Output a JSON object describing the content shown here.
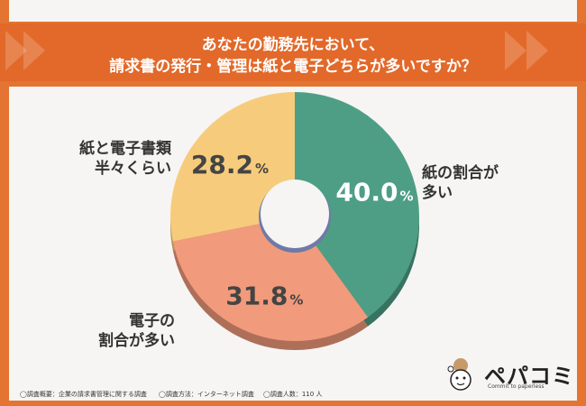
{
  "header": {
    "title_line1": "あなたの勤務先において、",
    "title_line2": "請求書の発行・管理は紙と電子どちらが多いですか？"
  },
  "chart_data": {
    "type": "pie",
    "donut": true,
    "slices": [
      {
        "label": "紙の割合が多い",
        "value": 40.0,
        "color": "#4e9e86"
      },
      {
        "label": "電子の割合が多い",
        "value": 31.8,
        "color": "#f29a7c"
      },
      {
        "label": "紙と電子書類半々くらい",
        "value": 28.2,
        "color": "#f6cc7c"
      }
    ],
    "value_labels": [
      "40.0",
      "31.8",
      "28.2"
    ],
    "unit": "%"
  },
  "labels": {
    "paper_line1": "紙の割合が",
    "paper_line2": "多い",
    "digital_line1": "電子の",
    "digital_line2": "割合が多い",
    "half_line1": "紙と電子書類",
    "half_line2": "半々くらい"
  },
  "footer": {
    "note1": "◯調査概要：企業の請求書管理に関する調査",
    "note2": "◯調査方法：インターネット調査",
    "note3": "◯調査人数：110 人"
  },
  "logo": {
    "name": "ペパコミ",
    "tagline": "Commit to paperless"
  },
  "colors": {
    "accent": "#e2692a",
    "center": "#6f7aa6"
  }
}
